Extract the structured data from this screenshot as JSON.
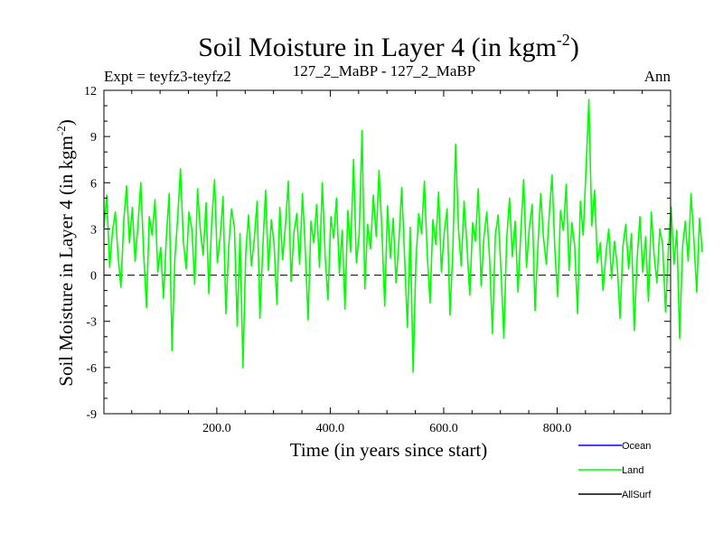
{
  "chart_data": {
    "type": "line",
    "title_main": "Soil Moisture in Layer 4 (in kgm",
    "title_sup": "-2",
    "title_close": ")",
    "subtitle_left": "Expt = teyfz3-teyfz2",
    "subtitle_center": "127_2_MaBP - 127_2_MaBP",
    "subtitle_right": "Ann",
    "xlabel": "Time (in years since start)",
    "ylabel_main": "Soil Moisture in Layer 4 (in kgm",
    "ylabel_sup": "-2",
    "ylabel_close": ")",
    "xlim": [
      1,
      1000
    ],
    "ylim": [
      -9,
      12
    ],
    "x_ticks": [
      200,
      400,
      600,
      800
    ],
    "x_tick_labels": [
      "200.0",
      "400.0",
      "600.0",
      "800.0"
    ],
    "y_ticks": [
      -9,
      -6,
      -3,
      0,
      3,
      6,
      9,
      12
    ],
    "y_tick_labels": [
      "-9",
      "-6",
      "-3",
      "0",
      "3",
      "6",
      "9",
      "12"
    ],
    "zero_line": 0,
    "legend": [
      {
        "name": "Ocean",
        "color": "#0000ff"
      },
      {
        "name": "Land",
        "color": "#00ff00"
      },
      {
        "name": "AllSurf",
        "color": "#000000"
      }
    ],
    "series": [
      {
        "name": "Land",
        "color": "#00ff00",
        "x_start": 1,
        "x_step": 5,
        "values": [
          3.1,
          5.2,
          0.5,
          2.8,
          4.1,
          1.2,
          -0.8,
          3.6,
          5.8,
          2.1,
          4.4,
          0.9,
          3.3,
          6.0,
          1.5,
          -2.1,
          3.8,
          2.6,
          4.9,
          0.2,
          1.8,
          -1.5,
          2.4,
          5.3,
          -4.9,
          1.1,
          3.7,
          6.9,
          2.2,
          0.4,
          4.1,
          3.0,
          -0.6,
          5.6,
          2.9,
          1.3,
          4.7,
          -1.2,
          3.4,
          6.2,
          0.8,
          2.5,
          5.1,
          -2.5,
          1.9,
          4.3,
          3.1,
          -3.3,
          2.7,
          -6.0,
          1.4,
          3.9,
          0.6,
          2.3,
          4.8,
          -2.8,
          1.7,
          5.5,
          0.3,
          3.6,
          2.0,
          -1.9,
          4.4,
          1.0,
          3.2,
          6.1,
          -0.4,
          2.8,
          4.0,
          0.7,
          5.3,
          1.6,
          -2.9,
          3.5,
          2.1,
          4.6,
          0.5,
          6.0,
          1.2,
          -1.6,
          3.8,
          2.4,
          5.0,
          0.1,
          2.9,
          -2.2,
          4.2,
          1.5,
          7.5,
          0.8,
          2.6,
          9.4,
          -0.9,
          3.3,
          1.7,
          5.2,
          2.5,
          6.8,
          3.0,
          -2.0,
          4.5,
          1.1,
          3.7,
          -0.5,
          2.2,
          5.7,
          1.3,
          -3.4,
          3.1,
          -6.3,
          0.9,
          4.0,
          2.7,
          6.1,
          1.4,
          -1.8,
          3.6,
          2.0,
          5.4,
          0.2,
          2.8,
          4.3,
          -2.6,
          1.5,
          8.5,
          3.0,
          0.6,
          4.8,
          1.9,
          -1.3,
          3.4,
          2.2,
          5.6,
          -0.7,
          2.5,
          4.1,
          1.0,
          -3.8,
          2.6,
          3.9,
          0.4,
          -4.1,
          2.3,
          5.0,
          1.2,
          3.5,
          -1.1,
          2.8,
          6.2,
          0.5,
          3.1,
          4.6,
          -2.3,
          1.8,
          5.3,
          2.4,
          0.7,
          3.9,
          6.5,
          1.6,
          -1.4,
          4.2,
          2.9,
          5.9,
          0.3,
          3.4,
          1.9,
          -2.5,
          4.8,
          2.6,
          7.0,
          11.4,
          3.2,
          5.5,
          0.8,
          2.1,
          -1.0,
          1.4,
          3.0,
          -0.2,
          2.2,
          0.6,
          -2.8,
          1.9,
          3.3,
          0.4,
          2.7,
          -3.6,
          1.1,
          3.8,
          0.2,
          2.5,
          -1.7,
          4.1,
          1.3,
          -0.5,
          3.0,
          2.0,
          -2.4,
          1.6,
          4.4,
          0.7,
          2.9,
          -4.1,
          1.8,
          3.5,
          0.9,
          5.3,
          2.4,
          -1.1,
          3.7,
          1.5
        ]
      }
    ]
  }
}
